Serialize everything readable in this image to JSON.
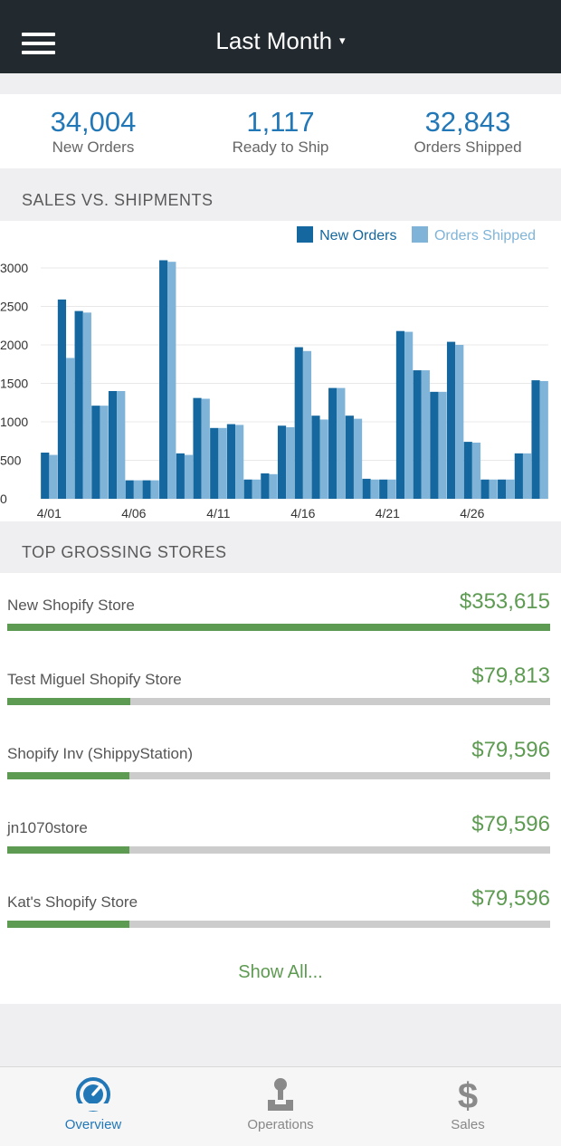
{
  "header": {
    "title": "Last Month",
    "caret": "▾",
    "menu_icon": "hamburger-icon"
  },
  "stats": [
    {
      "value": "34,004",
      "label": "New Orders"
    },
    {
      "value": "1,117",
      "label": "Ready to Ship"
    },
    {
      "value": "32,843",
      "label": "Orders Shipped"
    }
  ],
  "sections": {
    "chart": "SALES VS. SHIPMENTS",
    "stores": "TOP GROSSING STORES"
  },
  "colors": {
    "new_orders": "#14679f",
    "orders_shipped": "#7fb4d8",
    "accent_green": "#5e9b52",
    "active_blue": "#2277b7"
  },
  "chart_data": {
    "type": "bar",
    "legend": [
      "New Orders",
      "Orders Shipped"
    ],
    "legend_placement": "top-right",
    "ylim": [
      0,
      3000
    ],
    "yticks": [
      "0",
      "500",
      "1000",
      "1500",
      "2000",
      "2500",
      "3000"
    ],
    "xtick_labels": [
      {
        "index": 0,
        "label": "4/01"
      },
      {
        "index": 5,
        "label": "4/06"
      },
      {
        "index": 10,
        "label": "4/11"
      },
      {
        "index": 15,
        "label": "4/16"
      },
      {
        "index": 20,
        "label": "4/21"
      },
      {
        "index": 25,
        "label": "4/26"
      }
    ],
    "series": [
      {
        "name": "New Orders",
        "values": [
          600,
          2590,
          2440,
          1210,
          1400,
          240,
          240,
          3100,
          590,
          1310,
          920,
          970,
          250,
          330,
          950,
          1970,
          1080,
          1440,
          1080,
          260,
          250,
          2180,
          1670,
          1390,
          2040,
          740,
          250,
          250,
          590,
          1540
        ]
      },
      {
        "name": "Orders Shipped",
        "values": [
          570,
          1830,
          2420,
          1210,
          1400,
          240,
          240,
          3080,
          570,
          1300,
          920,
          960,
          250,
          320,
          930,
          1920,
          1030,
          1440,
          1040,
          250,
          250,
          2170,
          1670,
          1390,
          2000,
          730,
          250,
          250,
          590,
          1530
        ]
      }
    ]
  },
  "stores": [
    {
      "name": "New Shopify Store",
      "amount": "$353,615",
      "share": 1.0
    },
    {
      "name": "Test Miguel Shopify Store",
      "amount": "$79,813",
      "share": 0.226
    },
    {
      "name": "Shopify Inv (ShippyStation)",
      "amount": "$79,596",
      "share": 0.225
    },
    {
      "name": "jn1070store",
      "amount": "$79,596",
      "share": 0.225
    },
    {
      "name": "Kat's Shopify Store",
      "amount": "$79,596",
      "share": 0.225
    }
  ],
  "show_all": "Show All...",
  "tabs": [
    {
      "label": "Overview",
      "icon": "gauge-icon",
      "active": true
    },
    {
      "label": "Operations",
      "icon": "operator-icon",
      "active": false
    },
    {
      "label": "Sales",
      "icon": "dollar-icon",
      "active": false
    }
  ]
}
